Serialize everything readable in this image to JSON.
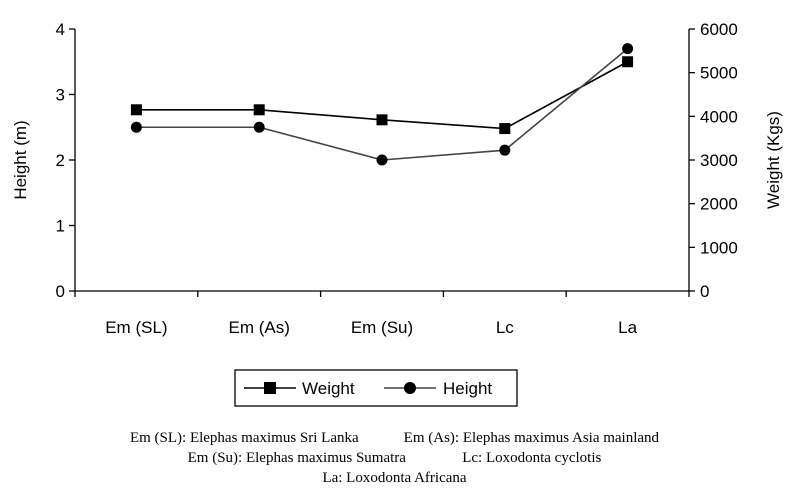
{
  "chart_data": {
    "type": "line",
    "categories": [
      "Em (SL)",
      "Em (As)",
      "Em (Su)",
      "Lc",
      "La"
    ],
    "left_axis": {
      "label": "Height (m)",
      "ylim": [
        0,
        4
      ],
      "ticks": [
        "0",
        "1",
        "2",
        "3",
        "4"
      ]
    },
    "right_axis": {
      "label": "Weight (Kgs)",
      "ylim": [
        0,
        6000
      ],
      "ticks": [
        "0",
        "1000",
        "2000",
        "3000",
        "4000",
        "5000",
        "6000"
      ]
    },
    "series": [
      {
        "name": "Weight",
        "axis": "right",
        "marker": "square",
        "values": [
          4150,
          4150,
          3920,
          3720,
          5250
        ]
      },
      {
        "name": "Height",
        "axis": "left",
        "marker": "circle",
        "values": [
          2.5,
          2.5,
          2.0,
          2.15,
          3.7
        ]
      }
    ],
    "legend_position": "bottom",
    "grid": false
  },
  "caption": {
    "line1_left": "Em (SL): Elephas maximus Sri Lanka",
    "line1_right": "Em (As): Elephas maximus Asia mainland",
    "line2_left": "Em (Su): Elephas maximus Sumatra",
    "line2_right": "Lc: Loxodonta cyclotis",
    "line3": "La: Loxodonta Africana"
  },
  "colors": {
    "weight_line": "#000000",
    "height_line": "#444444",
    "axis": "#000000"
  }
}
